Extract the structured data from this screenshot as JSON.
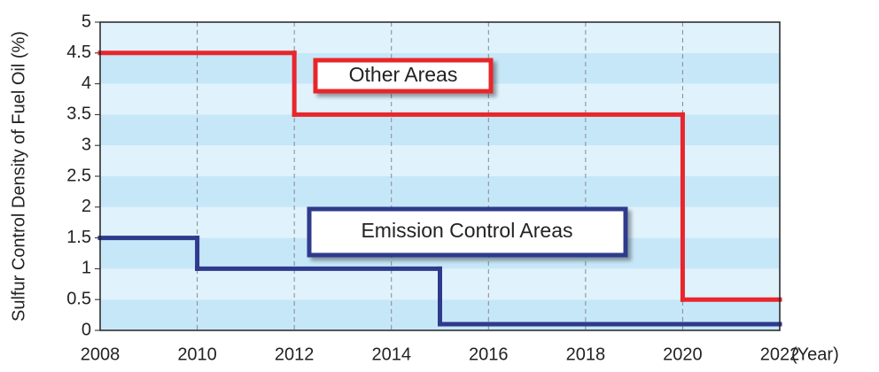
{
  "chart_data": {
    "type": "step",
    "y_label": "Sulfur Control Density of Fuel Oil (%)",
    "x_label": "(Year)",
    "xlim": [
      2008,
      2022
    ],
    "xticks": [
      2008,
      2010,
      2012,
      2014,
      2016,
      2018,
      2020,
      2022
    ],
    "ylim": [
      0,
      5
    ],
    "yticks": [
      0,
      0.5,
      1,
      1.5,
      2,
      2.5,
      3,
      3.5,
      4,
      4.5,
      5
    ],
    "grid": true,
    "series": [
      {
        "name": "Other Areas",
        "color": "#e8262c",
        "x": [
          2008,
          2012,
          2020
        ],
        "values": [
          4.5,
          3.5,
          0.5
        ]
      },
      {
        "name": "Emission Control Areas",
        "color": "#2e3a8c",
        "x": [
          2008,
          2010,
          2015
        ],
        "values": [
          1.5,
          1.0,
          0.1
        ]
      }
    ]
  }
}
